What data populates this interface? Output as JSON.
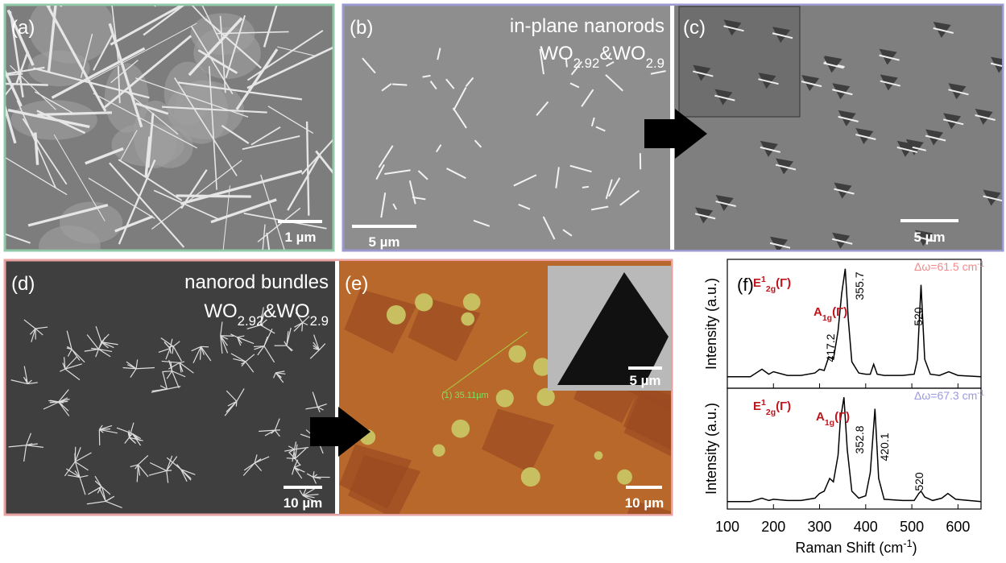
{
  "panels": {
    "a": {
      "label": "(a)",
      "scale": "1 µm"
    },
    "b": {
      "label": "(b)",
      "title": "in-plane nanorods",
      "formula": [
        "WO",
        "2.92",
        "&WO",
        "2.9"
      ],
      "scale": "5 µm"
    },
    "c": {
      "label": "(c)",
      "scale": "5 µm"
    },
    "d": {
      "label": "(d)",
      "title": "nanorod bundles",
      "formula": [
        "WO",
        "2.92",
        "&WO",
        "2.9"
      ],
      "scale": "10 µm"
    },
    "e": {
      "label": "(e)",
      "measure": "(1) 35.11µm",
      "inset_scale": "5 µm",
      "scale": "10 µm"
    },
    "f": {
      "label": "(f)",
      "xlabel": [
        "Raman Shift (cm",
        "-1",
        ")"
      ]
    }
  },
  "chart_data": [
    {
      "type": "line",
      "ylabel": "Intensity (a.u.)",
      "xlim": [
        100,
        650
      ],
      "ylim": [
        0,
        100
      ],
      "x": [
        100,
        150,
        175,
        190,
        200,
        230,
        260,
        290,
        300,
        310,
        320,
        330,
        340,
        348,
        355.7,
        362,
        370,
        385,
        400,
        410,
        417.2,
        425,
        440,
        480,
        505,
        512,
        520,
        528,
        540,
        560,
        580,
        600,
        650
      ],
      "series": [
        {
          "color": "#000000",
          "values": [
            8,
            8,
            14,
            10,
            12,
            9,
            9,
            11,
            14,
            13,
            24,
            22,
            45,
            75,
            95,
            55,
            20,
            11,
            10,
            10,
            18,
            10,
            9,
            9,
            10,
            22,
            82,
            22,
            10,
            9,
            12,
            9,
            8
          ]
        }
      ],
      "delta": {
        "text": "Δω=61.5 cm",
        "sup": "-1",
        "color": "#f08a8a"
      },
      "modes": [
        {
          "base": "E",
          "sup": "1",
          "sub": "2g",
          "tail": "(Γ)"
        },
        {
          "base": "A",
          "sub": "1g",
          "tail": "(Γ)"
        }
      ],
      "peaks": [
        "355.7",
        "417.2",
        "520"
      ]
    },
    {
      "type": "line",
      "ylabel": "Intensity (a.u.)",
      "xlim": [
        100,
        650
      ],
      "ylim": [
        0,
        100
      ],
      "xticks": [
        100,
        200,
        300,
        400,
        500,
        600
      ],
      "x": [
        100,
        150,
        175,
        190,
        200,
        230,
        260,
        290,
        300,
        310,
        322,
        330,
        340,
        345,
        352.8,
        360,
        370,
        385,
        400,
        410,
        420.1,
        428,
        440,
        480,
        505,
        515,
        520,
        528,
        545,
        565,
        578,
        595,
        650
      ],
      "series": [
        {
          "color": "#000000",
          "values": [
            5,
            5,
            8,
            6,
            7,
            6,
            6,
            8,
            12,
            14,
            25,
            22,
            45,
            75,
            95,
            50,
            14,
            8,
            10,
            30,
            85,
            25,
            7,
            6,
            6,
            12,
            14,
            9,
            6,
            8,
            12,
            7,
            5
          ]
        }
      ],
      "delta": {
        "text": "Δω=67.3 cm",
        "sup": "-1",
        "color": "#9a9ae0"
      },
      "modes": [
        {
          "base": "E",
          "sup": "1",
          "sub": "2g",
          "tail": "(Γ)"
        },
        {
          "base": "A",
          "sub": "1g",
          "tail": "(Γ)"
        }
      ],
      "peaks": [
        "352.8",
        "420.1",
        "520"
      ]
    }
  ]
}
